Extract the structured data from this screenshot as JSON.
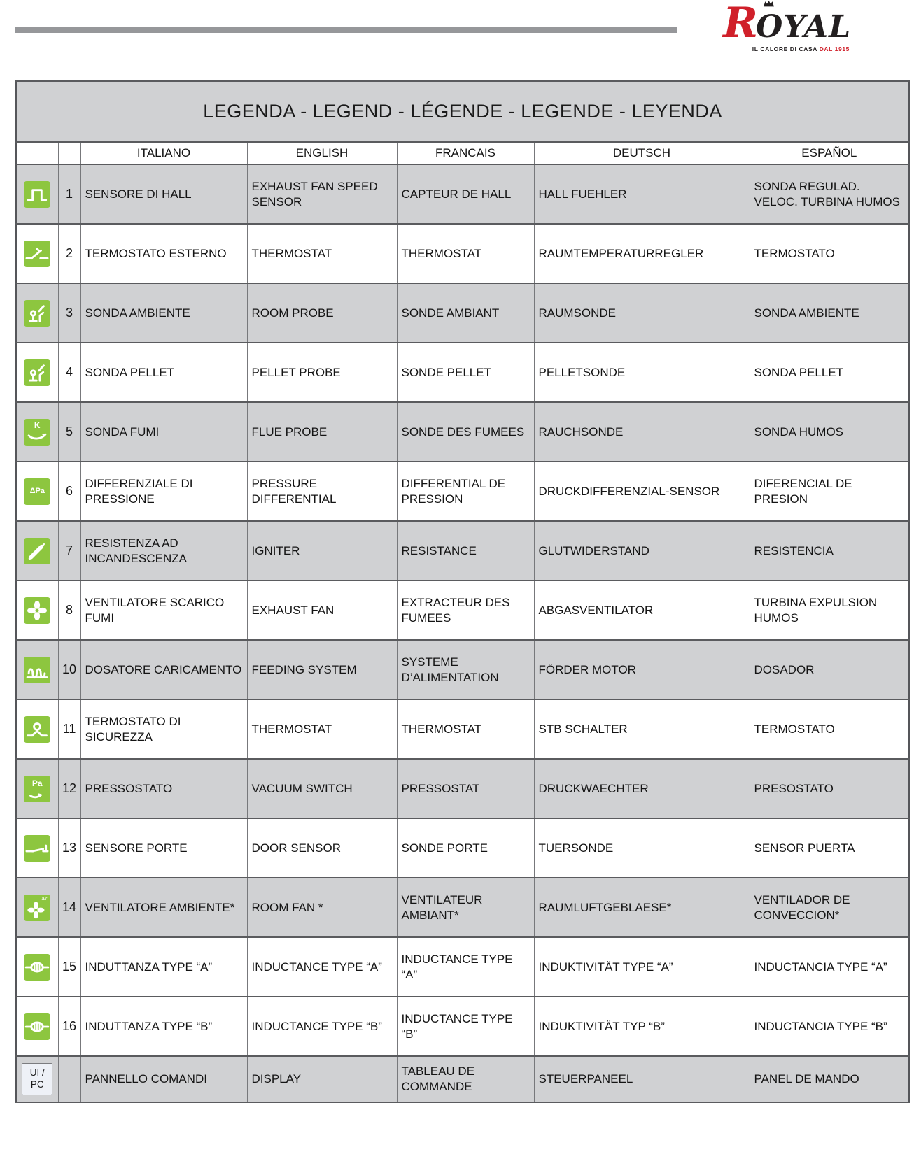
{
  "colors": {
    "accent_green": "#8dc63f",
    "row_gray": "#d0d1d3",
    "logo_red": "#d0202a",
    "logo_black": "#231f20"
  },
  "logo": {
    "brand_initial": "R",
    "brand_rest": "OYAL",
    "tagline_black": "IL CALORE DI CASA",
    "tagline_red": "DAL 1915"
  },
  "table": {
    "title": "LEGENDA - LEGEND - LÉGENDE - LEGENDE - LEYENDA",
    "headers": [
      "ITALIANO",
      "ENGLISH",
      "FRANCAIS",
      "DEUTSCH",
      "ESPAÑOL"
    ],
    "rows": [
      {
        "num": "1",
        "icon": "hall-sensor-icon",
        "icon_label": "",
        "shaded": true,
        "cells": [
          "SENSORE DI HALL",
          "EXHAUST FAN SPEED SENSOR",
          "CAPTEUR DE HALL",
          "HALL FUEHLER",
          "SONDA REGULAD. VELOC. TURBINA HUMOS"
        ]
      },
      {
        "num": "2",
        "icon": "external-thermostat-icon",
        "icon_label": "",
        "shaded": false,
        "cells": [
          "TERMOSTATO ESTERNO",
          "THERMOSTAT",
          "THERMOSTAT",
          "RAUMTEMPERATURREGLER",
          "TERMOSTATO"
        ]
      },
      {
        "num": "3",
        "icon": "room-probe-icon",
        "icon_label": "",
        "shaded": true,
        "cells": [
          "SONDA AMBIENTE",
          "ROOM PROBE",
          "SONDE AMBIANT",
          "RAUMSONDE",
          "SONDA AMBIENTE"
        ]
      },
      {
        "num": "4",
        "icon": "pellet-probe-icon",
        "icon_label": "",
        "shaded": false,
        "cells": [
          "SONDA PELLET",
          "PELLET PROBE",
          "SONDE PELLET",
          "PELLETSONDE",
          "SONDA PELLET"
        ]
      },
      {
        "num": "5",
        "icon": "flue-probe-icon",
        "icon_label": "K",
        "shaded": true,
        "cells": [
          "SONDA FUMI",
          "FLUE PROBE",
          "SONDE DES FUMEES",
          "RAUCHSONDE",
          "SONDA HUMOS"
        ]
      },
      {
        "num": "6",
        "icon": "pressure-differential-icon",
        "icon_label": "ΔPa",
        "shaded": false,
        "cells": [
          "DIFFERENZIALE DI PRESSIONE",
          "PRESSURE DIFFERENTIAL",
          "DIFFERENTIAL DE PRESSION",
          "DRUCKDIFFERENZIAL-SENSOR",
          "DIFERENCIAL DE PRESION"
        ]
      },
      {
        "num": "7",
        "icon": "igniter-icon",
        "icon_label": "",
        "shaded": true,
        "cells": [
          "RESISTENZA AD INCANDESCENZA",
          "IGNITER",
          "RESISTANCE",
          "GLUTWIDERSTAND",
          "RESISTENCIA"
        ]
      },
      {
        "num": "8",
        "icon": "exhaust-fan-icon",
        "icon_label": "",
        "shaded": false,
        "cells": [
          "VENTILATORE SCARICO FUMI",
          "EXHAUST FAN",
          "EXTRACTEUR DES FUMEES",
          "ABGASVENTILATOR",
          "TURBINA EXPULSION HUMOS"
        ]
      },
      {
        "num": "10",
        "icon": "feeding-system-icon",
        "icon_label": "",
        "shaded": true,
        "cells": [
          "DOSATORE CARICAMENTO",
          "FEEDING SYSTEM",
          "SYSTEME D’ALIMENTATION",
          "FÖRDER MOTOR",
          "DOSADOR"
        ]
      },
      {
        "num": "11",
        "icon": "safety-thermostat-icon",
        "icon_label": "",
        "shaded": false,
        "cells": [
          "TERMOSTATO DI SICUREZZA",
          "THERMOSTAT",
          "THERMOSTAT",
          "STB SCHALTER",
          "TERMOSTATO"
        ]
      },
      {
        "num": "12",
        "icon": "vacuum-switch-icon",
        "icon_label": "Pa",
        "shaded": true,
        "cells": [
          "PRESSOSTATO",
          "VACUUM SWITCH",
          "PRESSOSTAT",
          "DRUCKWAECHTER",
          "PRESOSTATO"
        ]
      },
      {
        "num": "13",
        "icon": "door-sensor-icon",
        "icon_label": "",
        "shaded": false,
        "cells": [
          "SENSORE PORTE",
          "DOOR SENSOR",
          "SONDE PORTE",
          "TUERSONDE",
          "SENSOR PUERTA"
        ]
      },
      {
        "num": "14",
        "icon": "room-fan-icon",
        "icon_label": "air",
        "shaded": true,
        "cells": [
          "VENTILATORE AMBIENTE*",
          "ROOM FAN *",
          "VENTILATEUR AMBIANT*",
          "RAUMLUFTGEBLAESE*",
          "VENTILADOR DE CONVECCION*"
        ]
      },
      {
        "num": "15",
        "icon": "inductance-a-icon",
        "icon_label": "",
        "shaded": false,
        "cells": [
          "INDUTTANZA TYPE “A”",
          "INDUCTANCE TYPE “A”",
          "INDUCTANCE TYPE “A”",
          "INDUKTIVITÄT TYPE “A”",
          "INDUCTANCIA TYPE “A”"
        ]
      },
      {
        "num": "16",
        "icon": "inductance-b-icon",
        "icon_label": "",
        "shaded": false,
        "cells": [
          "INDUTTANZA TYPE “B”",
          "INDUCTANCE TYPE “B”",
          "INDUCTANCE TYPE “B”",
          "INDUKTIVITÄT TYP “B”",
          "INDUCTANCIA TYPE “B”"
        ]
      },
      {
        "num": "",
        "icon": "ui-pc-icon",
        "icon_label": "UI /\nPC",
        "shaded": true,
        "cells": [
          "PANNELLO COMANDI",
          "DISPLAY",
          "TABLEAU DE COMMANDE",
          "STEUERPANEEL",
          "PANEL DE MANDO"
        ]
      }
    ]
  }
}
